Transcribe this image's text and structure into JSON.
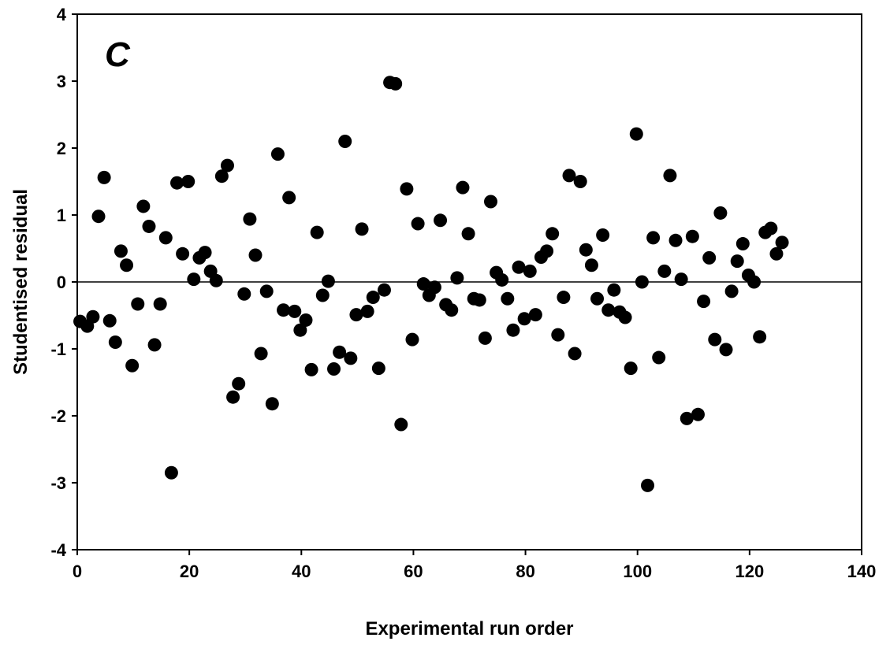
{
  "chart_data": {
    "type": "scatter",
    "panel_label": "C",
    "xlabel": "Experimental run order",
    "ylabel": "Studentised residual",
    "xlim": [
      0,
      140
    ],
    "ylim": [
      -4,
      4
    ],
    "x_ticks": [
      0,
      20,
      40,
      60,
      80,
      100,
      120,
      140
    ],
    "y_ticks": [
      -4,
      -3,
      -2,
      -1,
      0,
      1,
      2,
      3,
      4
    ],
    "grid": false,
    "reference_line_y": 0,
    "marker_color": "#000000",
    "points": [
      [
        0.5,
        -0.59
      ],
      [
        1.8,
        -0.66
      ],
      [
        2.8,
        -0.52
      ],
      [
        3.8,
        0.98
      ],
      [
        4.8,
        1.56
      ],
      [
        5.8,
        -0.58
      ],
      [
        6.8,
        -0.9
      ],
      [
        7.8,
        0.46
      ],
      [
        8.8,
        0.25
      ],
      [
        9.8,
        -1.25
      ],
      [
        10.8,
        -0.33
      ],
      [
        11.8,
        1.13
      ],
      [
        12.8,
        0.83
      ],
      [
        13.8,
        -0.94
      ],
      [
        14.8,
        -0.33
      ],
      [
        15.8,
        0.66
      ],
      [
        16.8,
        -2.85
      ],
      [
        17.8,
        1.48
      ],
      [
        18.8,
        0.42
      ],
      [
        19.8,
        1.5
      ],
      [
        20.8,
        0.04
      ],
      [
        21.8,
        0.36
      ],
      [
        22.8,
        0.44
      ],
      [
        23.8,
        0.16
      ],
      [
        24.8,
        0.02
      ],
      [
        25.8,
        1.58
      ],
      [
        26.8,
        1.74
      ],
      [
        27.8,
        -1.72
      ],
      [
        28.8,
        -1.52
      ],
      [
        29.8,
        -0.18
      ],
      [
        30.8,
        0.94
      ],
      [
        31.8,
        0.4
      ],
      [
        32.8,
        -1.07
      ],
      [
        33.8,
        -0.14
      ],
      [
        34.8,
        -1.82
      ],
      [
        35.8,
        1.91
      ],
      [
        36.8,
        -0.42
      ],
      [
        37.8,
        1.26
      ],
      [
        38.8,
        -0.44
      ],
      [
        39.8,
        -0.72
      ],
      [
        40.8,
        -0.57
      ],
      [
        41.8,
        -1.31
      ],
      [
        42.8,
        0.74
      ],
      [
        43.8,
        -0.2
      ],
      [
        44.8,
        0.01
      ],
      [
        45.8,
        -1.3
      ],
      [
        46.8,
        -1.05
      ],
      [
        47.8,
        2.1
      ],
      [
        48.8,
        -1.14
      ],
      [
        49.8,
        -0.49
      ],
      [
        50.8,
        0.79
      ],
      [
        51.8,
        -0.44
      ],
      [
        52.8,
        -0.23
      ],
      [
        53.8,
        -1.29
      ],
      [
        54.8,
        -0.12
      ],
      [
        55.8,
        2.98
      ],
      [
        56.8,
        2.96
      ],
      [
        57.8,
        -2.13
      ],
      [
        58.8,
        1.39
      ],
      [
        59.8,
        -0.86
      ],
      [
        60.8,
        0.87
      ],
      [
        61.8,
        -0.03
      ],
      [
        62.8,
        -0.2
      ],
      [
        63.8,
        -0.08
      ],
      [
        64.8,
        0.92
      ],
      [
        65.8,
        -0.34
      ],
      [
        66.8,
        -0.42
      ],
      [
        67.8,
        0.06
      ],
      [
        68.8,
        1.41
      ],
      [
        69.8,
        0.72
      ],
      [
        70.8,
        -0.25
      ],
      [
        71.8,
        -0.27
      ],
      [
        72.8,
        -0.84
      ],
      [
        73.8,
        1.2
      ],
      [
        74.8,
        0.14
      ],
      [
        75.8,
        0.03
      ],
      [
        76.8,
        -0.25
      ],
      [
        77.8,
        -0.72
      ],
      [
        78.8,
        0.22
      ],
      [
        79.8,
        -0.55
      ],
      [
        80.8,
        0.16
      ],
      [
        81.8,
        -0.49
      ],
      [
        82.8,
        0.37
      ],
      [
        83.8,
        0.46
      ],
      [
        84.8,
        0.72
      ],
      [
        85.8,
        -0.79
      ],
      [
        86.8,
        -0.23
      ],
      [
        87.8,
        1.59
      ],
      [
        88.8,
        -1.07
      ],
      [
        89.8,
        1.5
      ],
      [
        90.8,
        0.48
      ],
      [
        91.8,
        0.25
      ],
      [
        92.8,
        -0.25
      ],
      [
        93.8,
        0.7
      ],
      [
        94.8,
        -0.42
      ],
      [
        95.8,
        -0.12
      ],
      [
        96.8,
        -0.45
      ],
      [
        97.8,
        -0.53
      ],
      [
        98.8,
        -1.29
      ],
      [
        99.8,
        2.21
      ],
      [
        100.8,
        0.0
      ],
      [
        101.8,
        -3.04
      ],
      [
        102.8,
        0.66
      ],
      [
        103.8,
        -1.13
      ],
      [
        104.8,
        0.16
      ],
      [
        105.8,
        1.59
      ],
      [
        106.8,
        0.62
      ],
      [
        107.8,
        0.04
      ],
      [
        108.8,
        -2.04
      ],
      [
        109.8,
        0.68
      ],
      [
        110.8,
        -1.98
      ],
      [
        111.8,
        -0.29
      ],
      [
        112.8,
        0.36
      ],
      [
        113.8,
        -0.86
      ],
      [
        114.8,
        1.03
      ],
      [
        115.8,
        -1.01
      ],
      [
        116.8,
        -0.14
      ],
      [
        117.8,
        0.31
      ],
      [
        118.8,
        0.57
      ],
      [
        119.8,
        0.1
      ],
      [
        120.8,
        0.0
      ],
      [
        121.8,
        -0.82
      ],
      [
        122.8,
        0.74
      ],
      [
        123.8,
        0.8
      ],
      [
        124.8,
        0.42
      ],
      [
        125.8,
        0.59
      ]
    ]
  }
}
